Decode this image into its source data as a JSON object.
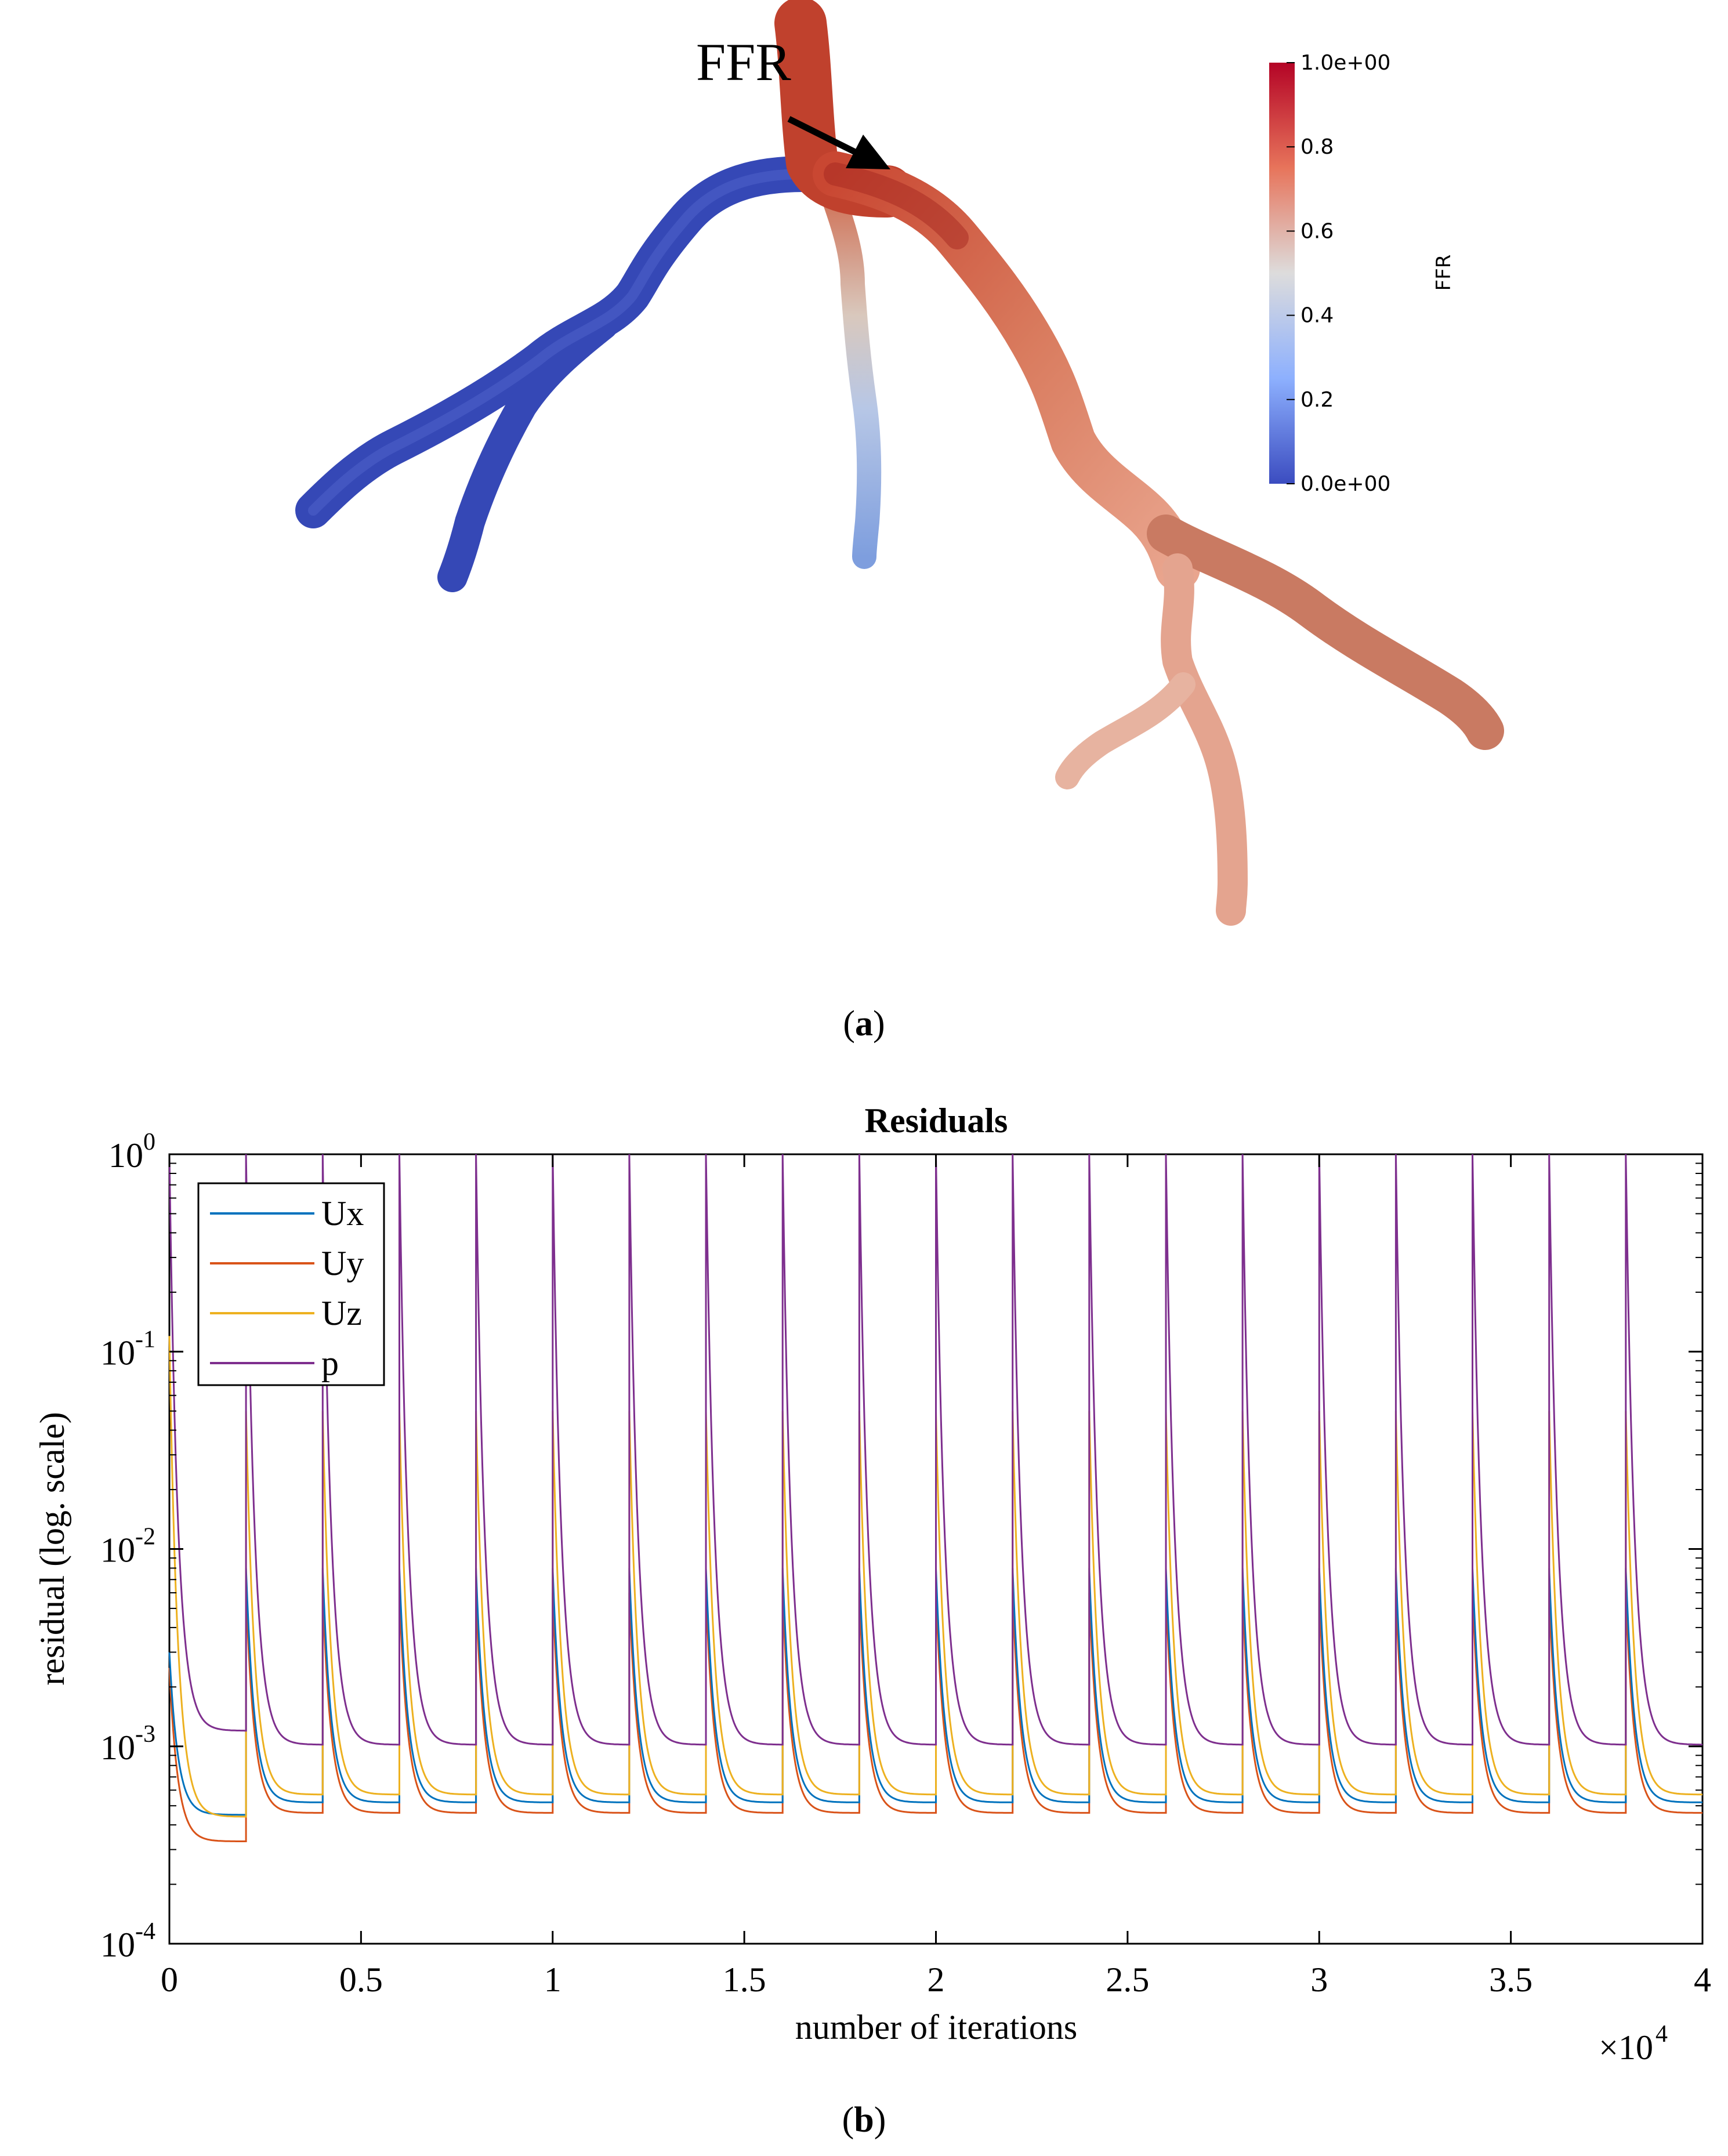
{
  "panel_a": {
    "annotation": "FFR",
    "colorbar": {
      "title": "FFR",
      "tick_labels": [
        "1.0e+00",
        "0.8",
        "0.6",
        "0.4",
        "0.2",
        "0.0e+00"
      ],
      "tick_values": [
        1.0,
        0.8,
        0.6,
        0.4,
        0.2,
        0.0
      ],
      "colors": {
        "high": "#b40426",
        "mid": "#dddcdc",
        "low": "#3b4cc0"
      }
    },
    "caption_letter": "a"
  },
  "panel_b": {
    "caption_letter": "b",
    "exponent_label": "×10",
    "exponent_power": "4"
  },
  "chart_data": {
    "type": "line",
    "title": "Residuals",
    "xlabel": "number of iterations",
    "ylabel": "residual (log. scale)",
    "x_scale": "linear",
    "y_scale": "log",
    "xlim": [
      0,
      40000
    ],
    "ylim": [
      0.0001,
      1
    ],
    "x_ticks": [
      0,
      5000,
      10000,
      15000,
      20000,
      25000,
      30000,
      35000,
      40000
    ],
    "x_tick_labels": [
      "0",
      "0.5",
      "1",
      "1.5",
      "2",
      "2.5",
      "3",
      "3.5",
      "4"
    ],
    "y_tick_exponents": [
      "0",
      "-1",
      "-2",
      "-3",
      "-4"
    ],
    "y_tick_base": "10",
    "legend_position": "top-left",
    "cycle_length": 2000,
    "num_cycles": 20,
    "series": [
      {
        "name": "Ux",
        "color": "#0072bd",
        "first_cycle_peak": 0.003,
        "first_cycle_final": 0.00045,
        "peak": 0.008,
        "final": 0.00052
      },
      {
        "name": "Uy",
        "color": "#d95319",
        "first_cycle_peak": 0.0025,
        "first_cycle_final": 0.00033,
        "peak": 0.006,
        "final": 0.00046
      },
      {
        "name": "Uz",
        "color": "#edb120",
        "first_cycle_peak": 0.12,
        "first_cycle_final": 0.00044,
        "peak": 0.05,
        "final": 0.00057
      },
      {
        "name": "p",
        "color": "#7e2f8e",
        "first_cycle_peak": 1.0,
        "first_cycle_final": 0.0012,
        "peak": 1.0,
        "final": 0.00102
      }
    ]
  }
}
